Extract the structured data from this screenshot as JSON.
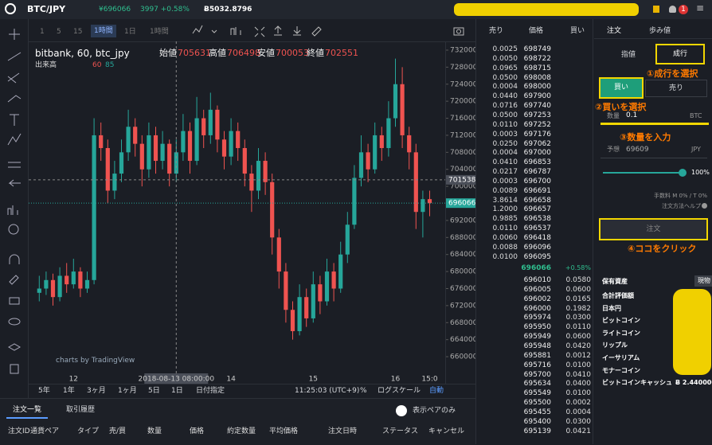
{
  "header": {
    "pair": "BTC/JPY",
    "price": "¥696066",
    "change": "3997 +0.58%",
    "balance": "Ƀ5032.8796",
    "notifications": "1"
  },
  "chart_toolbar": {
    "intervals": [
      "1",
      "5",
      "15",
      "1時間",
      "1日"
    ],
    "interval_select": "1時間"
  },
  "chart_data": {
    "type": "candlestick",
    "title": "bitbank, 60, btc_jpy",
    "ohlc_labels": [
      "始値",
      "高値",
      "安値",
      "終値"
    ],
    "ohlc_values": [
      705631,
      706498,
      700053,
      702551
    ],
    "volume_label": "出来高",
    "volume_values": [
      60,
      85
    ],
    "up_color": "#26a69a",
    "down_color": "#ef5350",
    "ylim": [
      655900,
      734050
    ],
    "yticks": [
      660000,
      664000,
      668000,
      672000,
      676000,
      680000,
      684000,
      688000,
      692000,
      696000,
      700000,
      704000,
      708000,
      712000,
      716000,
      720000,
      724000,
      728000,
      732000
    ],
    "crosshair_price": 701538,
    "last_price": 696066,
    "watermark": "charts by TradingView",
    "categories": [
      null,
      null,
      null,
      null,
      null,
      "12",
      null,
      null,
      null,
      null,
      null,
      null,
      null,
      null,
      null,
      null,
      null,
      null,
      null,
      null,
      "2018-08-13 08:00:00",
      null,
      null,
      null,
      null,
      null,
      null,
      null,
      "14",
      null,
      null,
      null,
      null,
      null,
      null,
      null,
      null,
      null,
      null,
      null,
      "15",
      null,
      null,
      null,
      null,
      null,
      null,
      null,
      null,
      null,
      null,
      null,
      "16",
      null,
      null,
      null,
      null,
      "15:0"
    ],
    "candles": [
      [
        675000,
        679000,
        673000,
        676000
      ],
      [
        676000,
        680000,
        674500,
        678000
      ],
      [
        678000,
        679500,
        672000,
        674000
      ],
      [
        674000,
        681000,
        673000,
        679000
      ],
      [
        679000,
        682000,
        675000,
        677000
      ],
      [
        677000,
        683000,
        676000,
        680000
      ],
      [
        680000,
        681000,
        674000,
        676000
      ],
      [
        676000,
        680000,
        675000,
        678000
      ],
      [
        678000,
        716000,
        677000,
        712000
      ],
      [
        712000,
        715000,
        706000,
        709000
      ],
      [
        709000,
        711000,
        696000,
        699000
      ],
      [
        699000,
        706000,
        697000,
        703000
      ],
      [
        703000,
        711000,
        701000,
        708000
      ],
      [
        708000,
        718000,
        706000,
        714000
      ],
      [
        714000,
        716000,
        707000,
        710000
      ],
      [
        710000,
        712000,
        700000,
        704000
      ],
      [
        704000,
        715000,
        702000,
        712000
      ],
      [
        712000,
        714000,
        703000,
        706000
      ],
      [
        706000,
        713000,
        704000,
        710000
      ],
      [
        710000,
        711000,
        700000,
        703000
      ],
      [
        703000,
        711000,
        701000,
        708000
      ],
      [
        708000,
        717000,
        706000,
        713000
      ],
      [
        713000,
        715000,
        703000,
        706000
      ],
      [
        706000,
        721000,
        705000,
        716000
      ],
      [
        716000,
        718000,
        709000,
        712000
      ],
      [
        712000,
        722000,
        710000,
        718000
      ],
      [
        718000,
        719000,
        708000,
        711000
      ],
      [
        711000,
        713000,
        704000,
        707000
      ],
      [
        707000,
        716000,
        705000,
        713000
      ],
      [
        713000,
        715000,
        706000,
        709000
      ],
      [
        709000,
        711000,
        700000,
        703000
      ],
      [
        703000,
        705000,
        694000,
        699000
      ],
      [
        699000,
        709000,
        697000,
        706000
      ],
      [
        706000,
        708000,
        698000,
        701000
      ],
      [
        701000,
        703000,
        684000,
        688000
      ],
      [
        688000,
        690000,
        676000,
        680000
      ],
      [
        680000,
        682000,
        668000,
        671000
      ],
      [
        671000,
        673000,
        664000,
        666000
      ],
      [
        666000,
        677000,
        665000,
        674000
      ],
      [
        674000,
        676000,
        667000,
        669000
      ],
      [
        669000,
        680000,
        668000,
        677000
      ],
      [
        677000,
        679000,
        670000,
        673000
      ],
      [
        673000,
        683000,
        672000,
        680000
      ],
      [
        680000,
        682000,
        673000,
        676000
      ],
      [
        676000,
        687000,
        675000,
        684000
      ],
      [
        684000,
        694000,
        682000,
        691000
      ],
      [
        691000,
        705000,
        690000,
        702000
      ],
      [
        702000,
        712000,
        700000,
        708000
      ],
      [
        708000,
        710000,
        701000,
        704000
      ],
      [
        704000,
        715000,
        703000,
        712000
      ],
      [
        712000,
        714000,
        706000,
        709000
      ],
      [
        709000,
        720000,
        707000,
        716000
      ],
      [
        716000,
        730000,
        714000,
        724000
      ],
      [
        724000,
        728000,
        709000,
        712000
      ],
      [
        712000,
        714000,
        704000,
        708000
      ],
      [
        708000,
        710000,
        690000,
        694000
      ],
      [
        694000,
        699000,
        688000,
        697000
      ],
      [
        697000,
        699000,
        693000,
        696066
      ]
    ]
  },
  "chart_footer": {
    "ranges": [
      "5年",
      "1年",
      "3ヶ月",
      "1ヶ月",
      "5日",
      "1日",
      "日付指定"
    ],
    "time": "11:25:03 (UTC+9)",
    "options": [
      "%",
      "ログスケール",
      "自動"
    ]
  },
  "orders": {
    "tabs": [
      "注文一覧",
      "取引履歴"
    ],
    "filter": "表示ペアのみ",
    "columns": [
      "注文ID",
      "通貨ペア",
      "タイプ",
      "売/買",
      "数量",
      "価格",
      "約定数量",
      "平均価格",
      "注文日時",
      "ステータス",
      "キャンセル"
    ]
  },
  "order_book": {
    "headers": [
      "売り",
      "価格",
      "買い"
    ],
    "asks": [
      [
        "0.0025",
        "698749"
      ],
      [
        "0.0050",
        "698722"
      ],
      [
        "0.0965",
        "698715"
      ],
      [
        "0.0500",
        "698008"
      ],
      [
        "0.0004",
        "698000"
      ],
      [
        "0.0440",
        "697900"
      ],
      [
        "0.0716",
        "697740"
      ],
      [
        "0.0500",
        "697253"
      ],
      [
        "0.0110",
        "697252"
      ],
      [
        "0.0003",
        "697176"
      ],
      [
        "0.0250",
        "697062"
      ],
      [
        "0.0004",
        "697000"
      ],
      [
        "0.0410",
        "696853"
      ],
      [
        "0.0217",
        "696787"
      ],
      [
        "0.0003",
        "696700"
      ],
      [
        "0.0089",
        "696691"
      ],
      [
        "3.8614",
        "696658"
      ],
      [
        "1.2000",
        "696657"
      ],
      [
        "0.9885",
        "696538"
      ],
      [
        "0.0110",
        "696537"
      ],
      [
        "0.0060",
        "696418"
      ],
      [
        "0.0088",
        "696096"
      ],
      [
        "0.0100",
        "696095"
      ]
    ],
    "mid_price": "696066",
    "mid_change": "+0.58%",
    "bids": [
      [
        "696010",
        "0.0580"
      ],
      [
        "696005",
        "0.0600"
      ],
      [
        "696002",
        "0.0165"
      ],
      [
        "696000",
        "0.1982"
      ],
      [
        "695974",
        "0.0300"
      ],
      [
        "695950",
        "0.0110"
      ],
      [
        "695949",
        "0.0600"
      ],
      [
        "695948",
        "0.0420"
      ],
      [
        "695881",
        "0.0012"
      ],
      [
        "695716",
        "0.0100"
      ],
      [
        "695700",
        "0.0410"
      ],
      [
        "695634",
        "0.0400"
      ],
      [
        "695549",
        "0.0100"
      ],
      [
        "695500",
        "0.0002"
      ],
      [
        "695455",
        "0.0004"
      ],
      [
        "695400",
        "0.0300"
      ],
      [
        "695139",
        "0.0421"
      ]
    ]
  },
  "order_form": {
    "tabs": [
      "注文",
      "歩み値"
    ],
    "types": [
      "指値",
      "成行"
    ],
    "sides": [
      "買い",
      "売り"
    ],
    "amount_label": "数量",
    "amount": "0.1",
    "amount_unit": "BTC",
    "estimate_label": "予想",
    "estimate": "69609",
    "estimate_unit": "JPY",
    "slider": "100%",
    "fee": "手数料 M 0% / T 0%",
    "help": "注文方法ヘルプ",
    "submit": "注文",
    "annotations": [
      "①成行を選択",
      "②買いを選択",
      "③数量を入力",
      "④ココをクリック"
    ]
  },
  "assets": {
    "title": "保有資産",
    "tab": "現物",
    "rows": [
      "合計評価額",
      "日本円",
      "ビットコイン",
      "ライトコイン",
      "リップル",
      "イーサリアム",
      "モナーコイン",
      "ビットコインキャッシュ"
    ],
    "bch_balance": "Ƀ 2.44000000"
  }
}
